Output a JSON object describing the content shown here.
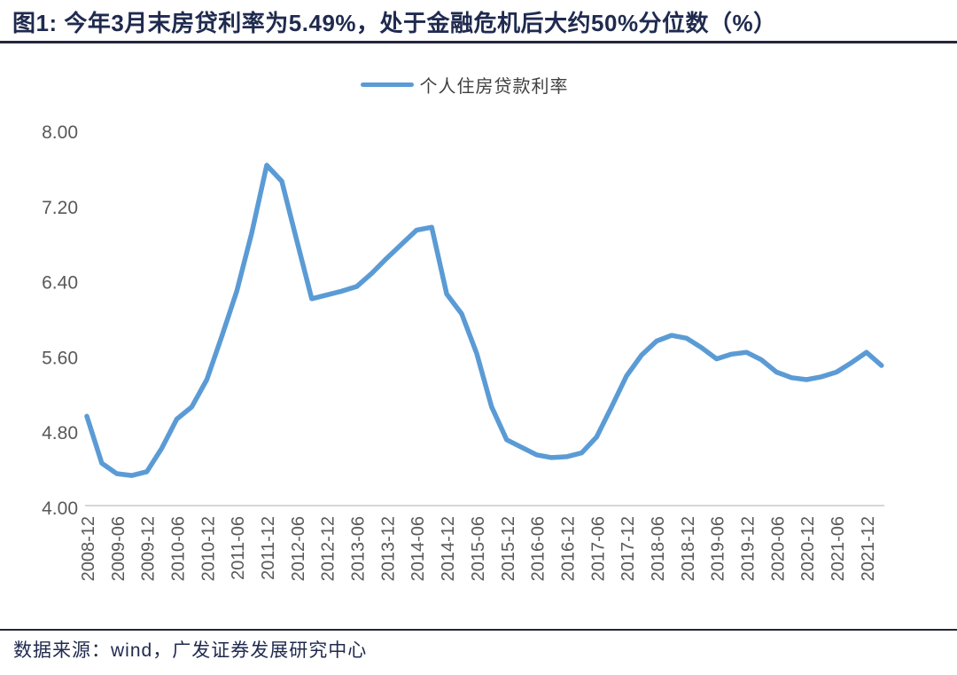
{
  "figure": {
    "title": "图1:  今年3月末房贷利率为5.49%，处于金融危机后大约50%分位数（%）",
    "source": "数据来源：wind，广发证券发展研究中心"
  },
  "legend": {
    "label": "个人住房贷款利率"
  },
  "colors": {
    "line": "#5B9BD5",
    "title_text": "#1F2A4E",
    "source_text": "#1F2A4E",
    "legend_text": "#3F3F3F",
    "axis_label": "#595959",
    "axis_line": "#C9C9C9",
    "rule": "#23263A"
  },
  "chart_data": {
    "type": "line",
    "title": "今年3月末房贷利率为5.49%，处于金融危机后大约50%分位数（%）",
    "x": [
      "2008-12",
      "2009-03",
      "2009-06",
      "2009-09",
      "2009-12",
      "2010-03",
      "2010-06",
      "2010-09",
      "2010-12",
      "2011-03",
      "2011-06",
      "2011-09",
      "2011-12",
      "2012-03",
      "2012-06",
      "2012-09",
      "2012-12",
      "2013-03",
      "2013-06",
      "2013-09",
      "2013-12",
      "2014-03",
      "2014-06",
      "2014-09",
      "2014-12",
      "2015-03",
      "2015-06",
      "2015-09",
      "2015-12",
      "2016-03",
      "2016-06",
      "2016-09",
      "2016-12",
      "2017-03",
      "2017-06",
      "2017-09",
      "2017-12",
      "2018-03",
      "2018-06",
      "2018-09",
      "2018-12",
      "2019-03",
      "2019-06",
      "2019-09",
      "2019-12",
      "2020-03",
      "2020-06",
      "2020-09",
      "2020-12",
      "2021-03",
      "2021-06",
      "2021-09",
      "2021-12",
      "2022-03"
    ],
    "series": [
      {
        "name": "个人住房贷款利率",
        "values": [
          4.95,
          4.45,
          4.34,
          4.32,
          4.36,
          4.61,
          4.92,
          5.05,
          5.34,
          5.8,
          6.28,
          6.9,
          7.62,
          7.45,
          6.82,
          6.2,
          6.24,
          6.28,
          6.33,
          6.47,
          6.63,
          6.78,
          6.93,
          6.96,
          6.25,
          6.04,
          5.62,
          5.05,
          4.7,
          4.62,
          4.54,
          4.51,
          4.52,
          4.56,
          4.73,
          5.05,
          5.38,
          5.6,
          5.75,
          5.81,
          5.78,
          5.68,
          5.56,
          5.61,
          5.63,
          5.55,
          5.42,
          5.36,
          5.34,
          5.37,
          5.42,
          5.52,
          5.63,
          5.49
        ]
      }
    ],
    "ylim": [
      4.0,
      8.0
    ],
    "ytick_labels": [
      "8.00",
      "7.20",
      "6.40",
      "5.60",
      "4.80",
      "4.00"
    ],
    "yticks": [
      8.0,
      7.2,
      6.4,
      5.6,
      4.8,
      4.0
    ],
    "xtick_labels": [
      "2008-12",
      "2009-06",
      "2009-12",
      "2010-06",
      "2010-12",
      "2011-06",
      "2011-12",
      "2012-06",
      "2012-12",
      "2013-06",
      "2013-12",
      "2014-06",
      "2014-12",
      "2015-06",
      "2015-12",
      "2016-06",
      "2016-12",
      "2017-06",
      "2017-12",
      "2018-06",
      "2018-12",
      "2019-06",
      "2019-12",
      "2020-06",
      "2020-12",
      "2021-06",
      "2021-12"
    ],
    "xtick_every": 2,
    "grid": false,
    "legend_position": "top-center"
  }
}
